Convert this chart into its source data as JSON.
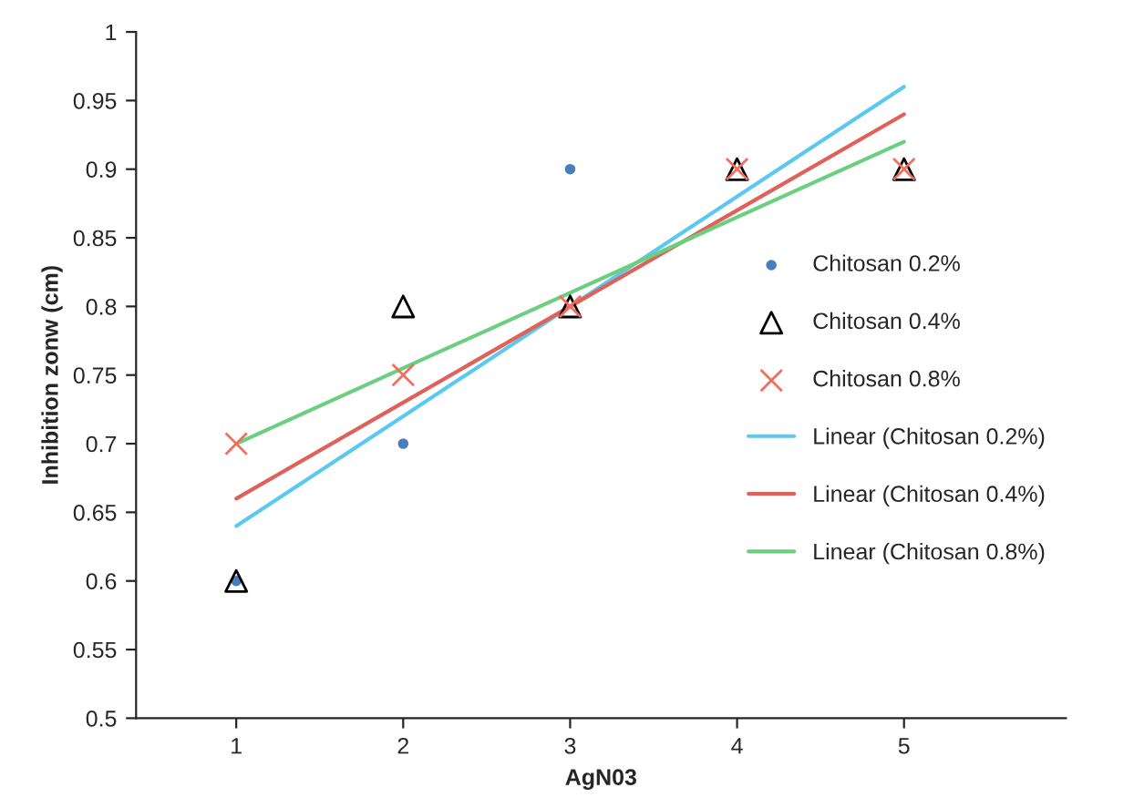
{
  "chart_data": {
    "type": "scatter",
    "xlabel": "AgN03",
    "ylabel": "Inhibition zonw (cm)",
    "x": [
      1,
      2,
      3,
      4,
      5
    ],
    "series": [
      {
        "name": "Chitosan 0.2%",
        "color": "#4a7ebb",
        "marker": "circle",
        "values": [
          0.6,
          0.7,
          0.9,
          null,
          null
        ]
      },
      {
        "name": "Chitosan 0.4%",
        "color": "#000000",
        "marker": "triangle",
        "values": [
          0.6,
          0.8,
          0.8,
          0.9,
          0.9
        ]
      },
      {
        "name": "Chitosan 0.8%",
        "color": "#f07060",
        "marker": "cross",
        "values": [
          0.7,
          0.75,
          0.8,
          0.9,
          0.9
        ]
      },
      {
        "name": "Linear (Chitosan 0.2%)",
        "type": "line",
        "color": "#5bc8f0",
        "values": [
          0.64,
          0.72,
          0.8,
          0.88,
          0.96
        ]
      },
      {
        "name": "Linear (Chitosan 0.4%)",
        "type": "line",
        "color": "#e0605a",
        "values": [
          0.66,
          0.73,
          0.8,
          0.87,
          0.94
        ]
      },
      {
        "name": "Linear (Chitosan 0.8%)",
        "type": "line",
        "color": "#6ccf7f",
        "values": [
          0.7,
          0.755,
          0.81,
          0.865,
          0.92
        ]
      }
    ],
    "xlim": [
      0.4,
      5.97
    ],
    "xticks": [
      1,
      2,
      3,
      4,
      5
    ],
    "ylim": [
      0.5,
      1
    ],
    "yticks": [
      0.5,
      0.55,
      0.6,
      0.65,
      0.7,
      0.75,
      0.8,
      0.85,
      0.9,
      0.95,
      1
    ],
    "grid": false,
    "legend": "right"
  }
}
